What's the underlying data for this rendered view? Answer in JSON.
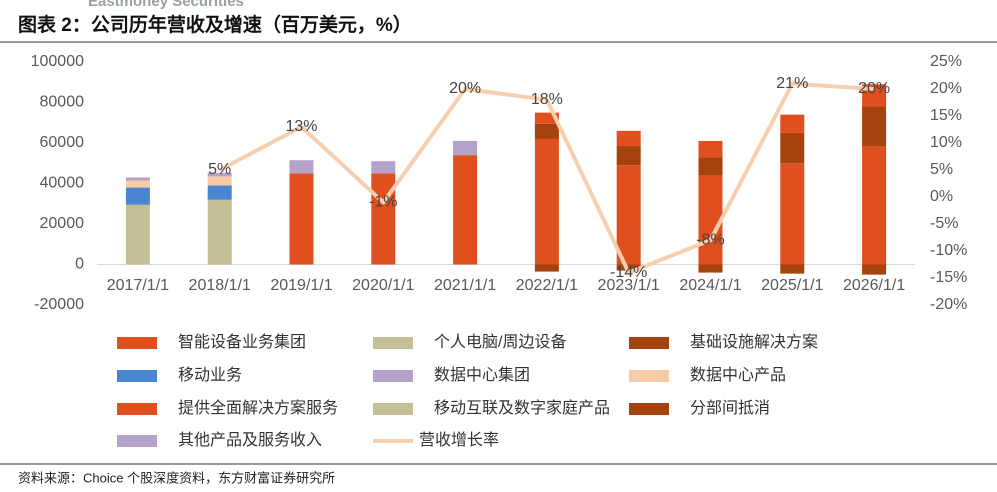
{
  "header": {
    "logo": "Eastmoney Securities",
    "title": "图表 2：公司历年营收及增速（百万美元，%）"
  },
  "chart_data": {
    "type": "bar",
    "categories": [
      "2017/1/1",
      "2018/1/1",
      "2019/1/1",
      "2020/1/1",
      "2021/1/1",
      "2022/1/1",
      "2023/1/1",
      "2024/1/1",
      "2025/1/1",
      "2026/1/1"
    ],
    "ylim": [
      -20000,
      100000
    ],
    "yticks": [
      -20000,
      0,
      20000,
      40000,
      60000,
      80000,
      100000
    ],
    "y2lim": [
      -20,
      25
    ],
    "y2ticks": [
      {
        "value": -20,
        "label": "-20%"
      },
      {
        "value": -15,
        "label": "-15%"
      },
      {
        "value": -10,
        "label": "-10%"
      },
      {
        "value": -5,
        "label": "-5%"
      },
      {
        "value": 0,
        "label": "0%"
      },
      {
        "value": 5,
        "label": "5%"
      },
      {
        "value": 10,
        "label": "10%"
      },
      {
        "value": 15,
        "label": "15%"
      },
      {
        "value": 20,
        "label": "20%"
      },
      {
        "value": 25,
        "label": "25%"
      }
    ],
    "series": [
      {
        "name": "智能设备业务集团",
        "color": "#e0501f",
        "values": [
          null,
          null,
          45000,
          45000,
          54000,
          62000,
          49000,
          44000,
          50000,
          58500
        ]
      },
      {
        "name": "个人电脑/周边设备",
        "color": "#c5bf98",
        "values": [
          29500,
          32000,
          null,
          null,
          null,
          null,
          null,
          null,
          null,
          null
        ]
      },
      {
        "name": "基础设施解决方案",
        "color": "#a5420e",
        "values": [
          null,
          null,
          null,
          null,
          null,
          7500,
          9500,
          9000,
          15000,
          19500
        ]
      },
      {
        "name": "移动业务",
        "color": "#4a86d0",
        "values": [
          8500,
          7000,
          null,
          null,
          null,
          null,
          null,
          null,
          null,
          null
        ]
      },
      {
        "name": "数据中心集团",
        "color": "#b4a2cb",
        "values": [
          null,
          null,
          6500,
          6000,
          7000,
          null,
          null,
          null,
          null,
          null
        ]
      },
      {
        "name": "数据中心产品",
        "color": "#f8caa6",
        "values": [
          3500,
          4500,
          null,
          null,
          null,
          null,
          null,
          null,
          null,
          null
        ]
      },
      {
        "name": "提供全面解决方案服务",
        "color": "#e0501f",
        "values": [
          null,
          null,
          null,
          null,
          null,
          5500,
          7500,
          8000,
          9000,
          11000
        ]
      },
      {
        "name": "移动互联及数字家庭产品",
        "color": "#c5bf98",
        "values": [
          null,
          null,
          null,
          null,
          null,
          null,
          null,
          null,
          null,
          null
        ]
      },
      {
        "name": "分部间抵消",
        "color": "#a5420e",
        "values": [
          null,
          null,
          null,
          null,
          null,
          -3500,
          -3000,
          -4000,
          -4500,
          -5000
        ]
      },
      {
        "name": "其他产品及服务收入",
        "color": "#b4a2cb",
        "values": [
          1500,
          1800,
          null,
          null,
          null,
          null,
          null,
          null,
          null,
          null
        ]
      },
      {
        "name": "营收增长率",
        "type": "line",
        "axis": "y2",
        "color": "#f8cfae",
        "values": [
          null,
          5,
          13,
          -1,
          20,
          18,
          -14,
          -8,
          21,
          20
        ],
        "value_labels": [
          null,
          "5%",
          "13%",
          "-1%",
          "20%",
          "18%",
          "-14%",
          "-8%",
          "21%",
          "20%"
        ]
      }
    ]
  },
  "footer": {
    "source": "资料来源：Choice 个股深度资料，东方财富证券研究所"
  }
}
